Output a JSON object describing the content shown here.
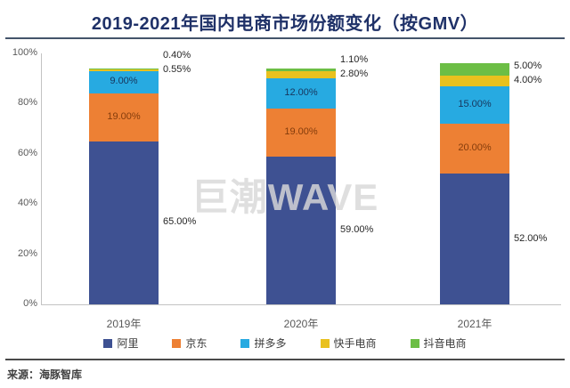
{
  "header": {
    "title": "2019-2021年国内电商市场份额变化（按GMV）"
  },
  "chart_data": {
    "type": "bar",
    "subtype": "stacked-percent",
    "title": "2019-2021年国内电商市场份额变化（按GMV）",
    "categories": [
      "2019年",
      "2020年",
      "2021年"
    ],
    "series": [
      {
        "name": "阿里",
        "color": "#3e5192",
        "label_color": "#262626",
        "label_style": "outside-right",
        "values": [
          65.0,
          59.0,
          52.0
        ]
      },
      {
        "name": "京东",
        "color": "#ed8034",
        "label_color": "#843c0c",
        "label_style": "inside",
        "values": [
          19.0,
          19.0,
          20.0
        ]
      },
      {
        "name": "拼多多",
        "color": "#27aae1",
        "label_color": "#17365d",
        "label_style": "inside",
        "values": [
          9.0,
          12.0,
          15.0
        ]
      },
      {
        "name": "快手电商",
        "color": "#e9c11e",
        "label_color": "#262626",
        "label_style": "outside-top",
        "values": [
          0.55,
          2.8,
          4.0
        ]
      },
      {
        "name": "抖音电商",
        "color": "#6cbe45",
        "label_color": "#262626",
        "label_style": "outside-top",
        "values": [
          0.4,
          1.1,
          5.0
        ]
      }
    ],
    "label_format": "0.00%",
    "xlabel": "",
    "ylabel": "",
    "ylim": [
      0,
      100
    ],
    "yticks": [
      {
        "label": "0%",
        "value": 0
      },
      {
        "label": "20%",
        "value": 20
      },
      {
        "label": "40%",
        "value": 40
      },
      {
        "label": "60%",
        "value": 60
      },
      {
        "label": "80%",
        "value": 80
      },
      {
        "label": "100%",
        "value": 100
      }
    ],
    "grid": false,
    "legend_position": "bottom",
    "watermark": "巨潮WAVE"
  },
  "footer": {
    "source": "来源：海豚智库"
  }
}
